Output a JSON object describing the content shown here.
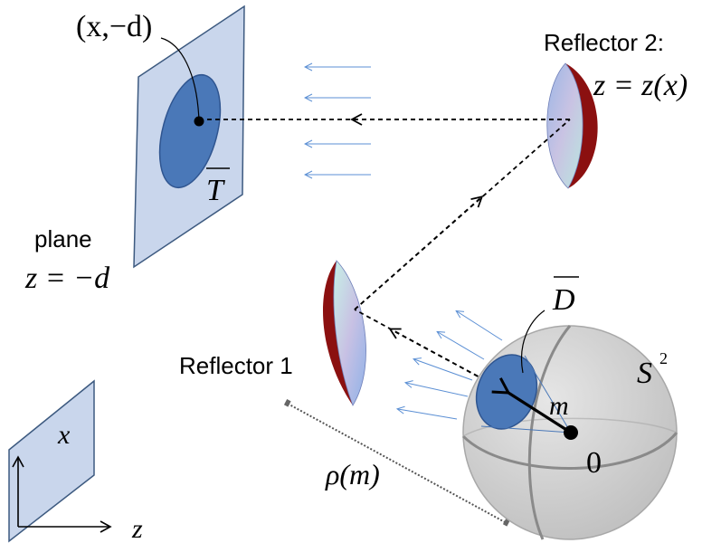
{
  "labels": {
    "point": "(x,−d)",
    "target_set": "T",
    "plane_word": "plane",
    "plane_eq": "z = −d",
    "reflector2_title": "Reflector 2:",
    "reflector2_eq": "z = z(x)",
    "reflector1": "Reflector 1",
    "source_set": "D",
    "sphere": "S",
    "sphere_exp": "2",
    "direction": "m",
    "origin": "0",
    "distance": "ρ(m)",
    "axis_x": "x",
    "axis_z": "z"
  },
  "colors": {
    "plane_fill": "#c9d6ec",
    "plane_stroke": "#3d5a80",
    "ellipse_fill": "#4a78b8",
    "ellipse_stroke": "#2f5590",
    "sphere_fill": "#c8c8c8",
    "ray_arrows": "#5b8fd4",
    "reflector_rim": "#8b1010"
  }
}
